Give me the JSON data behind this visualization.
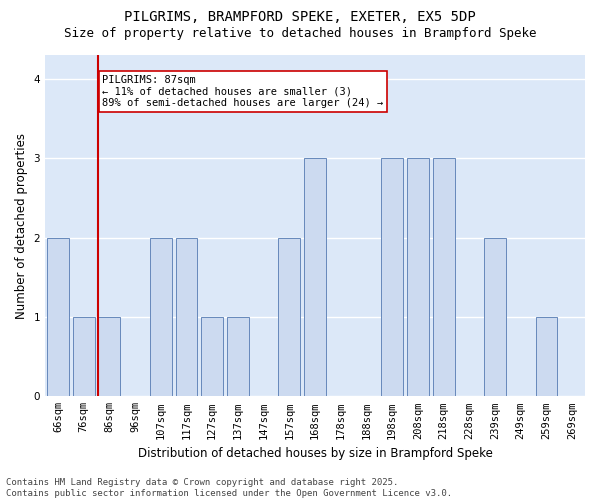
{
  "title_line1": "PILGRIMS, BRAMPFORD SPEKE, EXETER, EX5 5DP",
  "title_line2": "Size of property relative to detached houses in Brampford Speke",
  "xlabel": "Distribution of detached houses by size in Brampford Speke",
  "ylabel": "Number of detached properties",
  "categories": [
    "66sqm",
    "76sqm",
    "86sqm",
    "96sqm",
    "107sqm",
    "117sqm",
    "127sqm",
    "137sqm",
    "147sqm",
    "157sqm",
    "168sqm",
    "178sqm",
    "188sqm",
    "198sqm",
    "208sqm",
    "218sqm",
    "228sqm",
    "239sqm",
    "249sqm",
    "259sqm",
    "269sqm"
  ],
  "values": [
    2,
    1,
    1,
    0,
    2,
    2,
    1,
    1,
    0,
    2,
    3,
    0,
    0,
    3,
    3,
    3,
    0,
    2,
    0,
    1,
    0
  ],
  "bar_color": "#ccdaf0",
  "bar_edge_color": "#6688bb",
  "red_line_color": "#cc0000",
  "red_line_bar_index": 2,
  "annotation_text": "PILGRIMS: 87sqm\n← 11% of detached houses are smaller (3)\n89% of semi-detached houses are larger (24) →",
  "annotation_box_facecolor": "#ffffff",
  "annotation_box_edgecolor": "#cc0000",
  "ylim": [
    0,
    4.3
  ],
  "yticks": [
    0,
    1,
    2,
    3,
    4
  ],
  "plot_bg_color": "#dce8f8",
  "fig_bg_color": "#ffffff",
  "grid_color": "#ffffff",
  "footer_line1": "Contains HM Land Registry data © Crown copyright and database right 2025.",
  "footer_line2": "Contains public sector information licensed under the Open Government Licence v3.0.",
  "title_fontsize": 10,
  "subtitle_fontsize": 9,
  "axis_label_fontsize": 8.5,
  "tick_fontsize": 7.5,
  "annotation_fontsize": 7.5,
  "footer_fontsize": 6.5
}
